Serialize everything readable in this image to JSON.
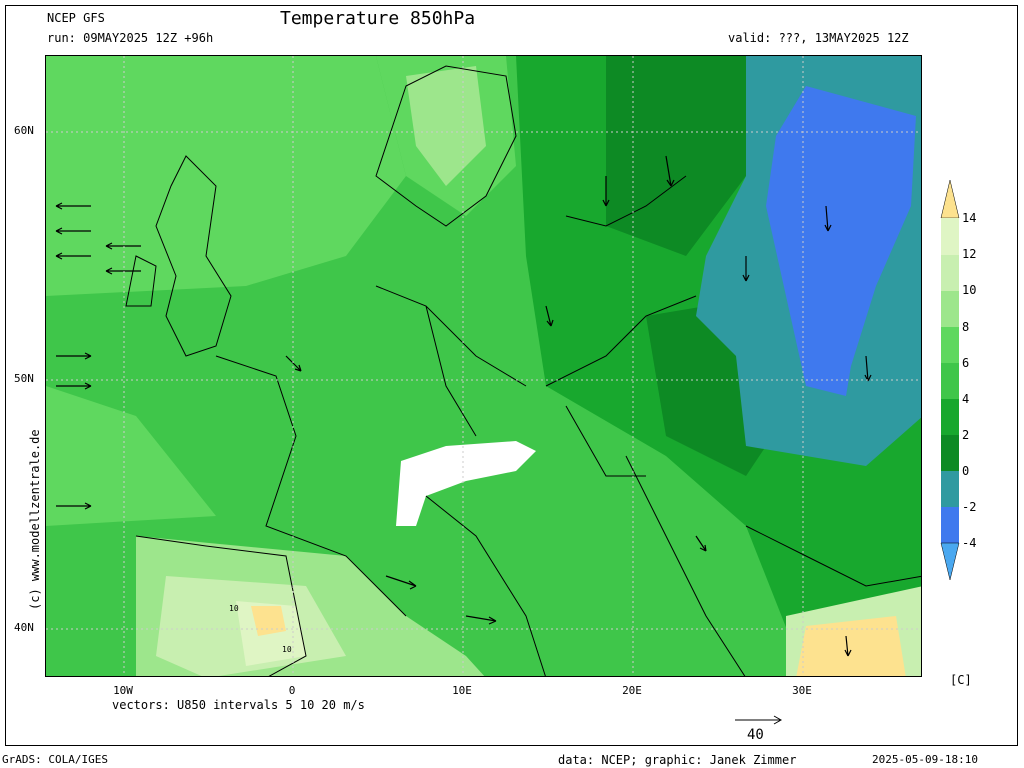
{
  "header": {
    "model": "NCEP GFS",
    "run": "run: 09MAY2025 12Z +96h",
    "title": "Temperature 850hPa",
    "valid": "valid: ???, 13MAY2025 12Z"
  },
  "axes": {
    "lat_labels": [
      "60N",
      "50N",
      "40N"
    ],
    "lon_labels": [
      "10W",
      "0",
      "10E",
      "20E",
      "30E"
    ]
  },
  "colorbar": {
    "labels": [
      "14",
      "12",
      "10",
      "8",
      "6",
      "4",
      "2",
      "0",
      "-2",
      "-4"
    ],
    "colors": [
      "#fde28f",
      "#dff5c4",
      "#c8efb0",
      "#9de68c",
      "#5fd85f",
      "#3fc64a",
      "#18a82e",
      "#0d8a24",
      "#2f9aa0",
      "#3f79ee"
    ],
    "unit": "[C]"
  },
  "vectors_note": "vectors: U850 intervals 5 10 20 m/s",
  "scale_arrow_label": "40",
  "copyright": "(c) www.modellzentrale.de",
  "footer": {
    "left": "GrADS: COLA/IGES",
    "center": "data: NCEP; graphic: Janek Zimmer",
    "right": "2025-05-09-18:10"
  },
  "map_labels": [
    "10",
    "10"
  ]
}
